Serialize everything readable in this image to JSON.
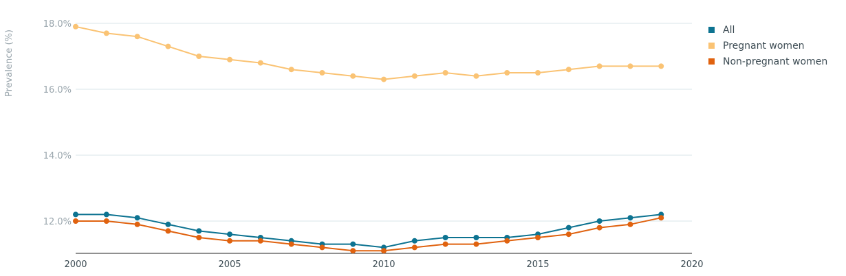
{
  "chart_data": {
    "type": "line",
    "x": [
      2000,
      2001,
      2002,
      2003,
      2004,
      2005,
      2006,
      2007,
      2008,
      2009,
      2010,
      2011,
      2012,
      2013,
      2014,
      2015,
      2016,
      2017,
      2018,
      2019
    ],
    "series": [
      {
        "name": "All",
        "color": "#0d7391",
        "values": [
          12.2,
          12.2,
          12.1,
          11.9,
          11.7,
          11.6,
          11.5,
          11.4,
          11.3,
          11.3,
          11.2,
          11.4,
          11.5,
          11.5,
          11.5,
          11.6,
          11.8,
          12.0,
          12.1,
          12.2
        ]
      },
      {
        "name": "Pregnant women",
        "color": "#fac374",
        "values": [
          17.9,
          17.7,
          17.6,
          17.3,
          17.0,
          16.9,
          16.8,
          16.6,
          16.5,
          16.4,
          16.3,
          16.4,
          16.5,
          16.4,
          16.5,
          16.5,
          16.6,
          16.7,
          16.7,
          16.7
        ]
      },
      {
        "name": "Non-pregnant women",
        "color": "#e0620f",
        "values": [
          12.0,
          12.0,
          11.9,
          11.7,
          11.5,
          11.4,
          11.4,
          11.3,
          11.2,
          11.1,
          11.1,
          11.2,
          11.3,
          11.3,
          11.4,
          11.5,
          11.6,
          11.8,
          11.9,
          12.1
        ]
      }
    ],
    "ylabel": "Prevalence (%)",
    "xlabel": "",
    "y_ticks": [
      "12.0%",
      "14.0%",
      "16.0%",
      "18.0%"
    ],
    "y_tick_values": [
      12,
      14,
      16,
      18
    ],
    "x_ticks": [
      "2000",
      "2005",
      "2010",
      "2015",
      "2020"
    ],
    "x_tick_values": [
      2000,
      2005,
      2010,
      2015,
      2020
    ],
    "xlim": [
      2000,
      2020
    ],
    "ylim": [
      11.0,
      18.0
    ],
    "grid": true,
    "legend_position": "right"
  }
}
